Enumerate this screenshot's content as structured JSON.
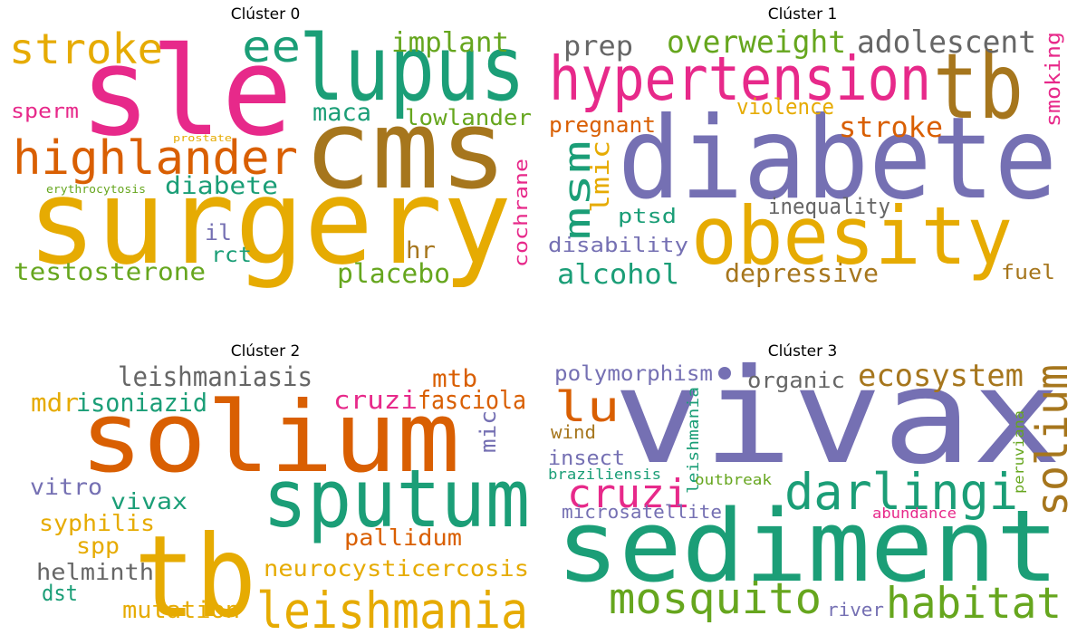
{
  "chart_data": [
    {
      "type": "wordcloud",
      "title": "Clúster 0",
      "words": [
        {
          "text": "surgery",
          "color": "#e6ab02"
        },
        {
          "text": "cms",
          "color": "#a6761d"
        },
        {
          "text": "sle",
          "color": "#e7298a"
        },
        {
          "text": "lupus",
          "color": "#1b9e77"
        },
        {
          "text": "highlander",
          "color": "#d95f02"
        },
        {
          "text": "stroke",
          "color": "#e6ab02"
        },
        {
          "text": "ee",
          "color": "#1b9e77"
        },
        {
          "text": "implant",
          "color": "#66a61e"
        },
        {
          "text": "lowlander",
          "color": "#66a61e"
        },
        {
          "text": "maca",
          "color": "#1b9e77"
        },
        {
          "text": "sperm",
          "color": "#e7298a"
        },
        {
          "text": "diabete",
          "color": "#1b9e77"
        },
        {
          "text": "cochrane",
          "color": "#e7298a"
        },
        {
          "text": "testosterone",
          "color": "#66a61e"
        },
        {
          "text": "placebo",
          "color": "#66a61e"
        },
        {
          "text": "hr",
          "color": "#a6761d"
        },
        {
          "text": "il",
          "color": "#7570b3"
        },
        {
          "text": "rct",
          "color": "#1b9e77"
        },
        {
          "text": "prostate",
          "color": "#e6ab02"
        },
        {
          "text": "erythrocytosis",
          "color": "#66a61e"
        }
      ]
    },
    {
      "type": "wordcloud",
      "title": "Clúster 1",
      "words": [
        {
          "text": "diabete",
          "color": "#7570b3"
        },
        {
          "text": "obesity",
          "color": "#e6ab02"
        },
        {
          "text": "hypertension",
          "color": "#e7298a"
        },
        {
          "text": "tb",
          "color": "#a6761d"
        },
        {
          "text": "overweight",
          "color": "#66a61e"
        },
        {
          "text": "adolescent",
          "color": "#666666"
        },
        {
          "text": "prep",
          "color": "#666666"
        },
        {
          "text": "smoking",
          "color": "#e7298a"
        },
        {
          "text": "msm",
          "color": "#1b9e77"
        },
        {
          "text": "lmic",
          "color": "#e6ab02"
        },
        {
          "text": "stroke",
          "color": "#d95f02"
        },
        {
          "text": "pregnant",
          "color": "#d95f02"
        },
        {
          "text": "violence",
          "color": "#e6ab02"
        },
        {
          "text": "alcohol",
          "color": "#1b9e77"
        },
        {
          "text": "depressive",
          "color": "#a6761d"
        },
        {
          "text": "inequality",
          "color": "#666666"
        },
        {
          "text": "ptsd",
          "color": "#1b9e77"
        },
        {
          "text": "disability",
          "color": "#7570b3"
        },
        {
          "text": "fuel",
          "color": "#a6761d"
        }
      ]
    },
    {
      "type": "wordcloud",
      "title": "Clúster 2",
      "words": [
        {
          "text": "solium",
          "color": "#d95f02"
        },
        {
          "text": "sputum",
          "color": "#1b9e77"
        },
        {
          "text": "tb",
          "color": "#e6ab02"
        },
        {
          "text": "leishmania",
          "color": "#e6ab02"
        },
        {
          "text": "leishmaniasis",
          "color": "#666666"
        },
        {
          "text": "isoniazid",
          "color": "#1b9e77"
        },
        {
          "text": "mdr",
          "color": "#e6ab02"
        },
        {
          "text": "cruzi",
          "color": "#e7298a"
        },
        {
          "text": "fasciola",
          "color": "#d95f02"
        },
        {
          "text": "mtb",
          "color": "#d95f02"
        },
        {
          "text": "mic",
          "color": "#7570b3"
        },
        {
          "text": "vitro",
          "color": "#7570b3"
        },
        {
          "text": "vivax",
          "color": "#1b9e77"
        },
        {
          "text": "syphilis",
          "color": "#e6ab02"
        },
        {
          "text": "spp",
          "color": "#e6ab02"
        },
        {
          "text": "pallidum",
          "color": "#d95f02"
        },
        {
          "text": "helminth",
          "color": "#666666"
        },
        {
          "text": "neurocysticercosis",
          "color": "#e6ab02"
        },
        {
          "text": "dst",
          "color": "#1b9e77"
        },
        {
          "text": "mutation",
          "color": "#e6ab02"
        }
      ]
    },
    {
      "type": "wordcloud",
      "title": "Clúster 3",
      "words": [
        {
          "text": "vivax",
          "color": "#7570b3"
        },
        {
          "text": "sediment",
          "color": "#1b9e77"
        },
        {
          "text": "darlingi",
          "color": "#1b9e77"
        },
        {
          "text": "habitat",
          "color": "#66a61e"
        },
        {
          "text": "mosquito",
          "color": "#66a61e"
        },
        {
          "text": "solium",
          "color": "#a6761d"
        },
        {
          "text": "ecosystem",
          "color": "#a6761d"
        },
        {
          "text": "cruzi",
          "color": "#e7298a"
        },
        {
          "text": "lu",
          "color": "#d95f02"
        },
        {
          "text": "polymorphism",
          "color": "#7570b3"
        },
        {
          "text": "organic",
          "color": "#666666"
        },
        {
          "text": "leishmania",
          "color": "#1b9e77"
        },
        {
          "text": "insect",
          "color": "#7570b3"
        },
        {
          "text": "wind",
          "color": "#a6761d"
        },
        {
          "text": "braziliensis",
          "color": "#1b9e77"
        },
        {
          "text": "outbreak",
          "color": "#66a61e"
        },
        {
          "text": "peruviana",
          "color": "#66a61e"
        },
        {
          "text": "microsatellite",
          "color": "#7570b3"
        },
        {
          "text": "abundance",
          "color": "#e7298a"
        },
        {
          "text": "river",
          "color": "#7570b3"
        }
      ]
    }
  ]
}
